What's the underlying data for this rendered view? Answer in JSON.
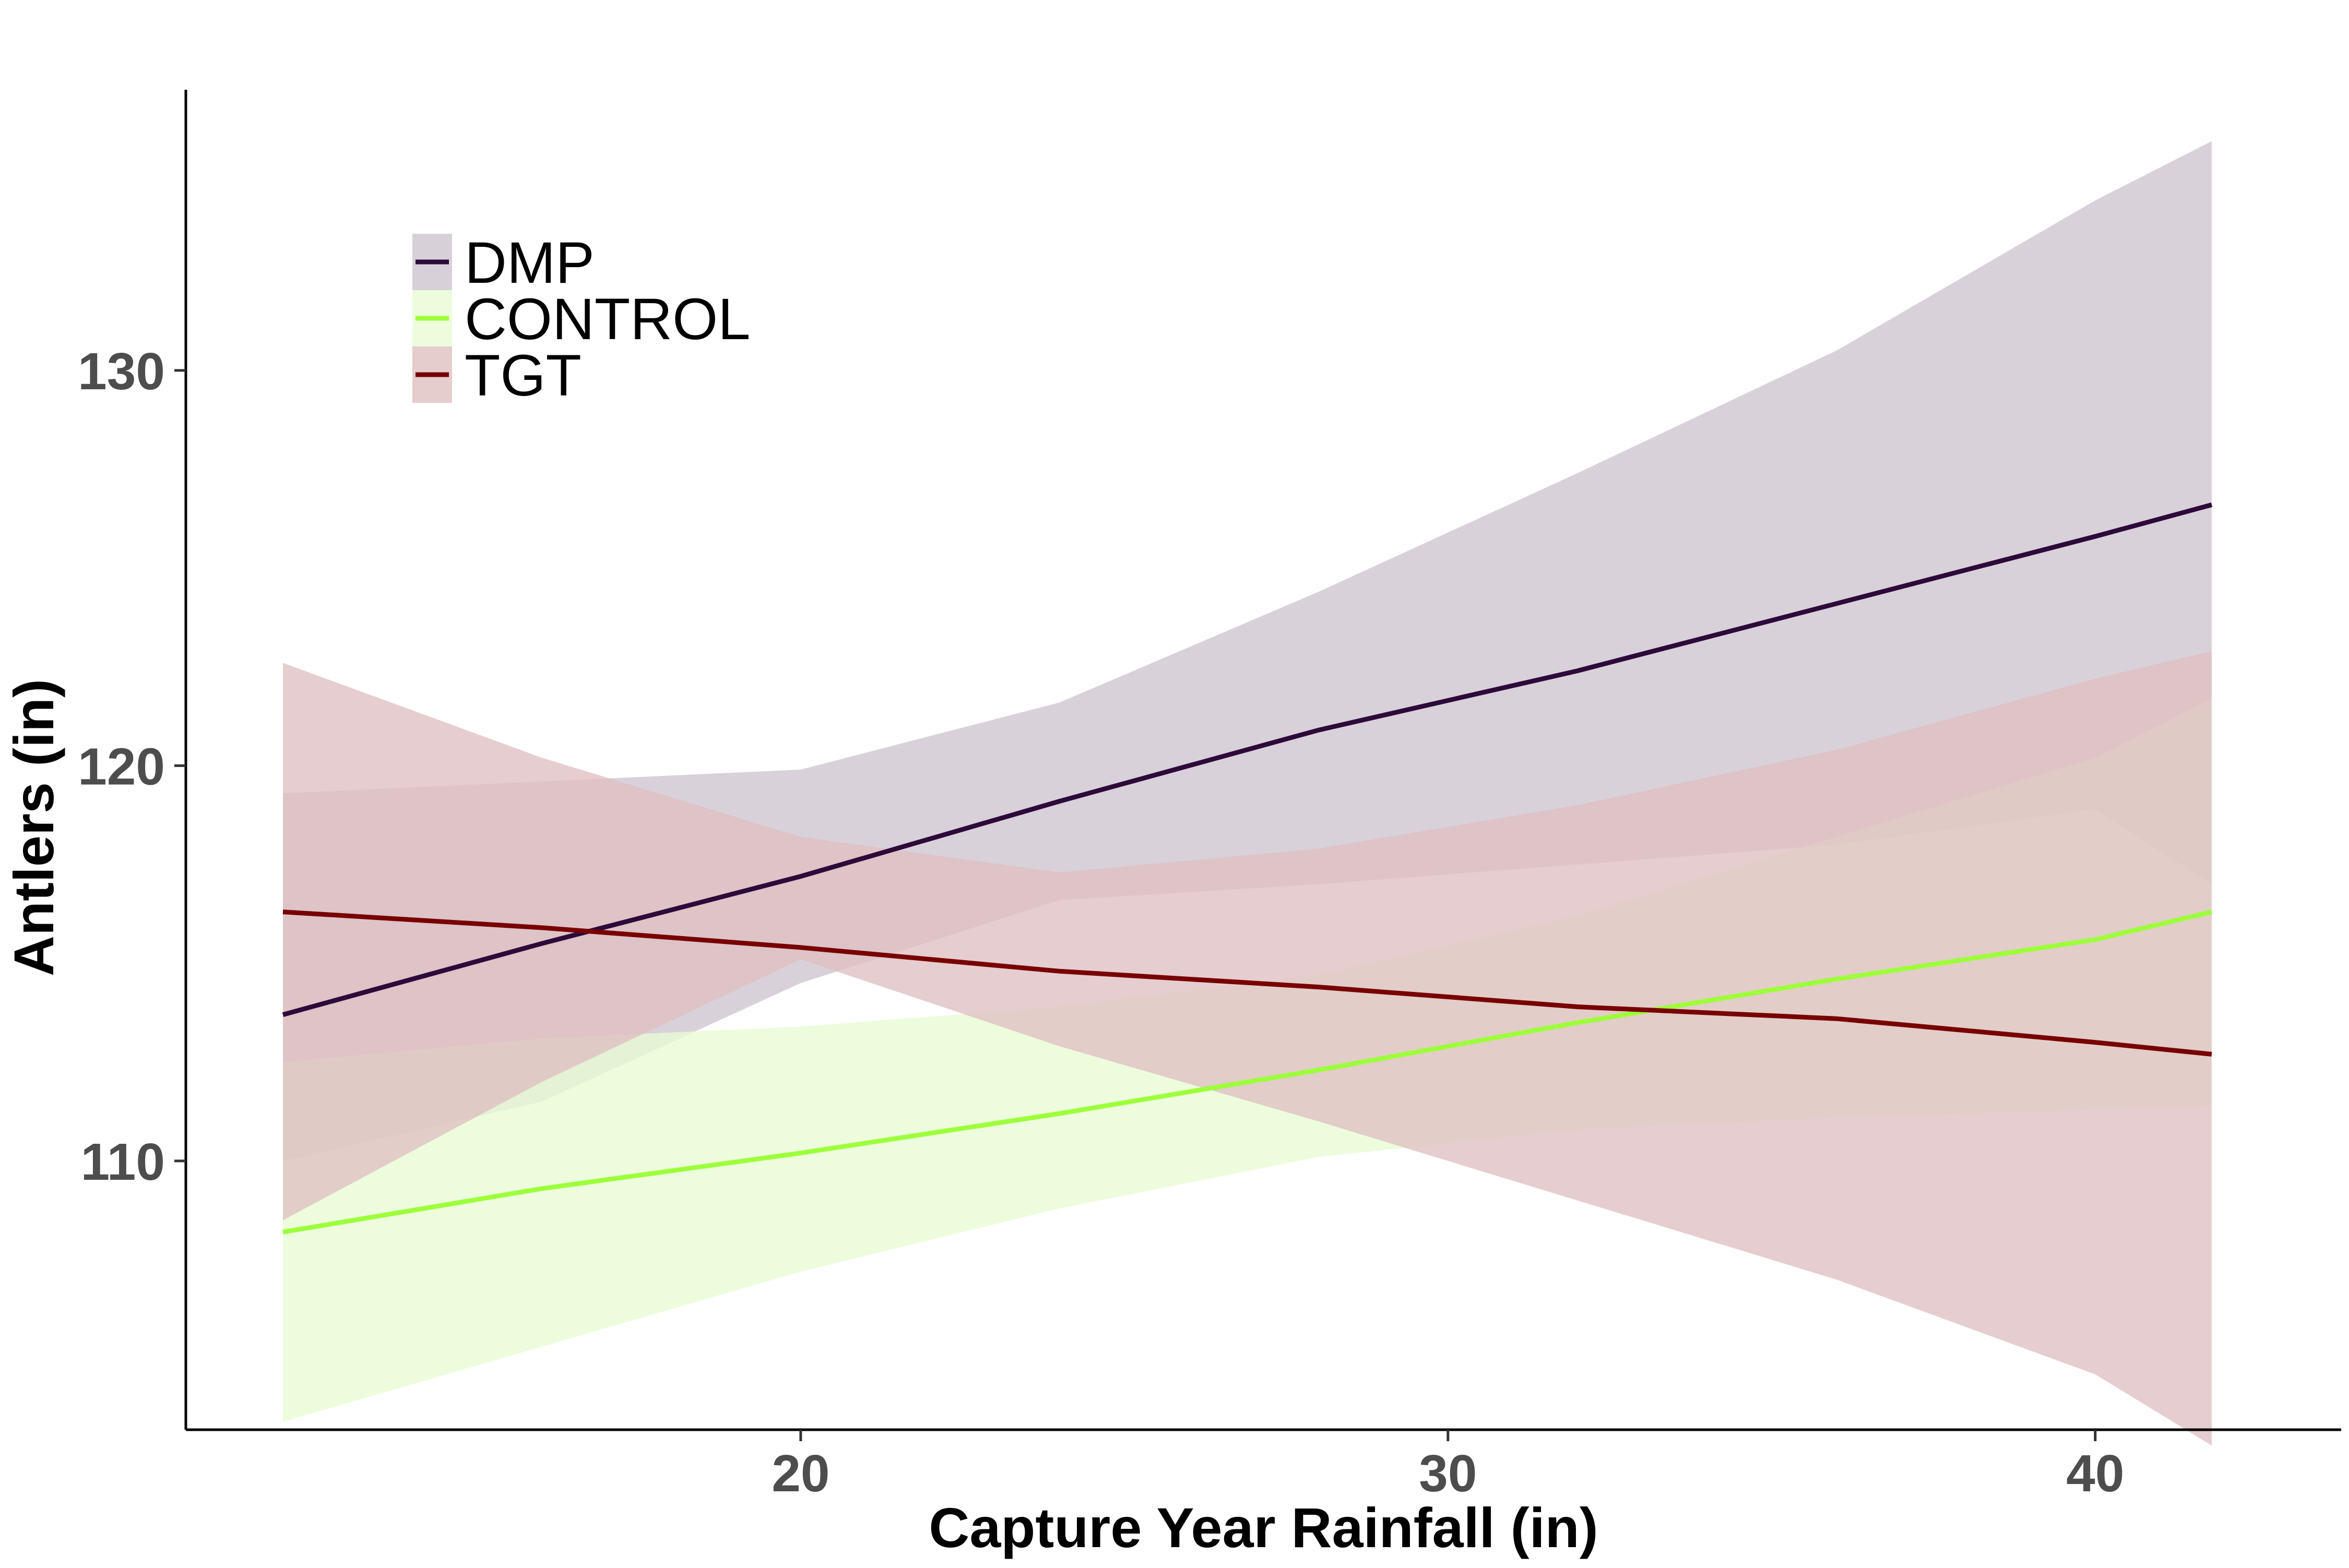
{
  "chart_data": {
    "type": "line",
    "title": "",
    "xlabel": "Capture Year Rainfall (in)",
    "ylabel": "Antlers (in)",
    "xlim": [
      10.5,
      43.8
    ],
    "ylim": [
      103.2,
      137.1
    ],
    "x_ticks": [
      20,
      30,
      40
    ],
    "y_ticks": [
      110,
      120,
      130
    ],
    "grid": false,
    "legend_position": "top-left",
    "x": [
      12,
      16,
      20,
      24,
      28,
      32,
      36,
      40,
      41.8
    ],
    "series": [
      {
        "name": "DMP",
        "color": "#2d0a3a",
        "band_color": "#cec4d0",
        "values": [
          113.7,
          115.5,
          117.2,
          119.1,
          120.9,
          122.4,
          124.1,
          125.8,
          126.6
        ],
        "lower": [
          110.0,
          111.5,
          114.5,
          116.6,
          117.0,
          117.5,
          118.0,
          118.9,
          117.0
        ],
        "upper": [
          119.3,
          119.6,
          119.9,
          121.6,
          124.4,
          127.4,
          130.5,
          134.3,
          135.8
        ]
      },
      {
        "name": "CONTROL",
        "color": "#9dff3b",
        "band_color": "#e8fbd4",
        "values": [
          108.2,
          109.3,
          110.2,
          111.2,
          112.3,
          113.5,
          114.6,
          115.6,
          116.3
        ],
        "lower": [
          103.4,
          105.3,
          107.2,
          108.8,
          110.1,
          110.8,
          111.1,
          111.3,
          111.4
        ],
        "upper": [
          112.5,
          113.1,
          113.4,
          113.9,
          114.7,
          116.2,
          118.2,
          120.2,
          121.7
        ]
      },
      {
        "name": "TGT",
        "color": "#780000",
        "band_color": "#dfbfc1",
        "values": [
          116.3,
          115.9,
          115.4,
          114.8,
          114.4,
          113.9,
          113.6,
          113.0,
          112.7
        ],
        "lower": [
          108.5,
          112.0,
          115.1,
          112.9,
          111.0,
          109.0,
          107.0,
          104.6,
          102.8
        ],
        "upper": [
          122.6,
          120.2,
          118.2,
          117.3,
          117.9,
          119.0,
          120.4,
          122.2,
          122.9
        ]
      }
    ]
  }
}
